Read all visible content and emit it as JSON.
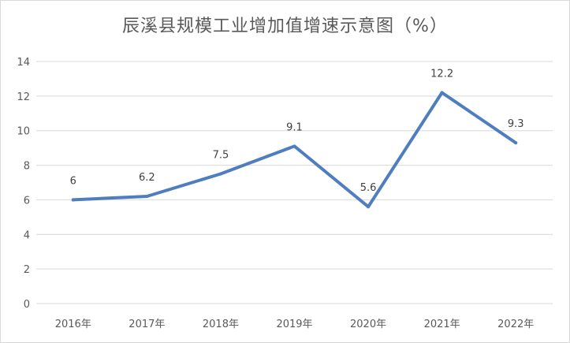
{
  "chart_data": {
    "type": "line",
    "title": "辰溪县规模工业增加值增速示意图（%）",
    "categories": [
      "2016年",
      "2017年",
      "2018年",
      "2019年",
      "2020年",
      "2021年",
      "2022年"
    ],
    "series": [
      {
        "values": [
          6,
          6.2,
          7.5,
          9.1,
          5.6,
          12.2,
          9.3
        ]
      }
    ],
    "data_labels": [
      "6",
      "6.2",
      "7.5",
      "9.1",
      "5.6",
      "12.2",
      "9.3"
    ],
    "ylim": [
      0,
      14
    ],
    "yticks": [
      "0",
      "2",
      "4",
      "6",
      "8",
      "10",
      "12",
      "14"
    ],
    "grid": true,
    "xlabel": "",
    "ylabel": "",
    "line_color": "#4f7ec0",
    "grid_color": "#d9d9d9"
  }
}
